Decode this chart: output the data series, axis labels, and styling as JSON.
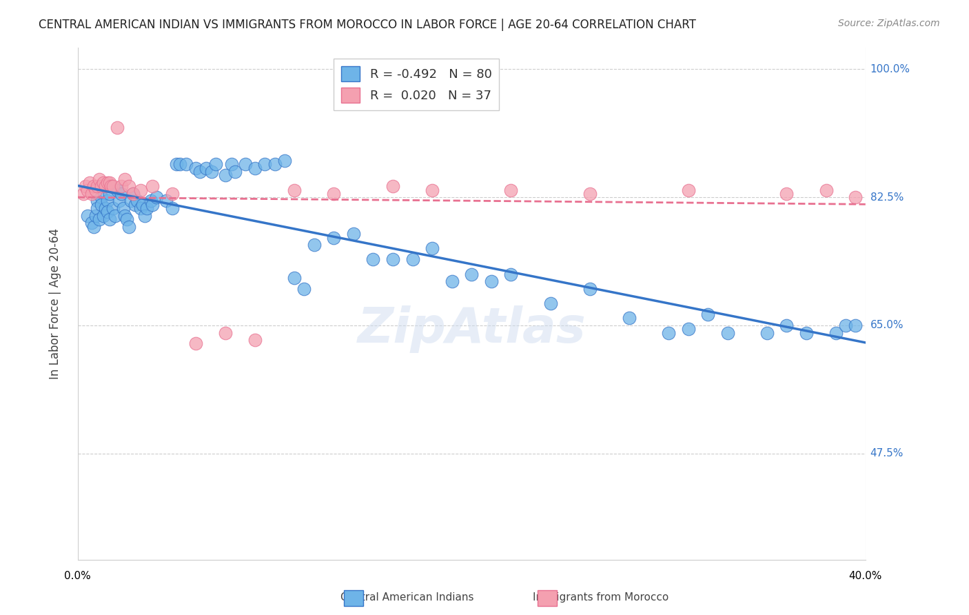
{
  "title": "CENTRAL AMERICAN INDIAN VS IMMIGRANTS FROM MOROCCO IN LABOR FORCE | AGE 20-64 CORRELATION CHART",
  "source": "Source: ZipAtlas.com",
  "ylabel": "In Labor Force | Age 20-64",
  "yticks": [
    0.475,
    0.65,
    0.825,
    1.0
  ],
  "ytick_labels": [
    "47.5%",
    "65.0%",
    "82.5%",
    "100.0%"
  ],
  "xmin": 0.0,
  "xmax": 0.4,
  "ymin": 0.33,
  "ymax": 1.03,
  "legend_r1": "R = -0.492",
  "legend_n1": "N = 80",
  "legend_r2": "R =  0.020",
  "legend_n2": "N = 37",
  "color_blue": "#6EB4E8",
  "color_pink": "#F4A0B0",
  "color_blue_line": "#3575C8",
  "color_pink_line": "#E87090",
  "color_axis_label_right": "#3575C8",
  "watermark": "ZipAtlas",
  "blue_x": [
    0.005,
    0.007,
    0.008,
    0.009,
    0.01,
    0.01,
    0.011,
    0.012,
    0.012,
    0.013,
    0.014,
    0.015,
    0.015,
    0.016,
    0.016,
    0.017,
    0.018,
    0.019,
    0.02,
    0.021,
    0.022,
    0.023,
    0.024,
    0.025,
    0.026,
    0.027,
    0.028,
    0.029,
    0.03,
    0.032,
    0.033,
    0.034,
    0.035,
    0.037,
    0.038,
    0.04,
    0.045,
    0.048,
    0.05,
    0.052,
    0.055,
    0.06,
    0.062,
    0.065,
    0.068,
    0.07,
    0.075,
    0.078,
    0.08,
    0.085,
    0.09,
    0.095,
    0.1,
    0.105,
    0.11,
    0.115,
    0.12,
    0.13,
    0.14,
    0.15,
    0.16,
    0.17,
    0.18,
    0.19,
    0.2,
    0.21,
    0.22,
    0.24,
    0.26,
    0.28,
    0.3,
    0.31,
    0.32,
    0.33,
    0.35,
    0.36,
    0.37,
    0.385,
    0.39,
    0.395
  ],
  "blue_y": [
    0.8,
    0.79,
    0.785,
    0.8,
    0.82,
    0.81,
    0.795,
    0.825,
    0.815,
    0.8,
    0.81,
    0.82,
    0.805,
    0.795,
    0.83,
    0.84,
    0.81,
    0.8,
    0.835,
    0.82,
    0.83,
    0.81,
    0.8,
    0.795,
    0.785,
    0.82,
    0.83,
    0.815,
    0.82,
    0.81,
    0.815,
    0.8,
    0.81,
    0.82,
    0.815,
    0.825,
    0.82,
    0.81,
    0.87,
    0.87,
    0.87,
    0.865,
    0.86,
    0.865,
    0.86,
    0.87,
    0.855,
    0.87,
    0.86,
    0.87,
    0.865,
    0.87,
    0.87,
    0.875,
    0.715,
    0.7,
    0.76,
    0.77,
    0.775,
    0.74,
    0.74,
    0.74,
    0.755,
    0.71,
    0.72,
    0.71,
    0.72,
    0.68,
    0.7,
    0.66,
    0.64,
    0.645,
    0.665,
    0.64,
    0.64,
    0.65,
    0.64,
    0.64,
    0.65,
    0.65
  ],
  "pink_x": [
    0.003,
    0.004,
    0.005,
    0.006,
    0.007,
    0.008,
    0.009,
    0.01,
    0.011,
    0.012,
    0.013,
    0.014,
    0.015,
    0.016,
    0.017,
    0.018,
    0.02,
    0.022,
    0.024,
    0.026,
    0.028,
    0.032,
    0.038,
    0.048,
    0.06,
    0.075,
    0.09,
    0.11,
    0.13,
    0.16,
    0.18,
    0.22,
    0.26,
    0.31,
    0.36,
    0.38,
    0.395
  ],
  "pink_y": [
    0.83,
    0.84,
    0.835,
    0.845,
    0.83,
    0.84,
    0.835,
    0.84,
    0.85,
    0.84,
    0.845,
    0.84,
    0.845,
    0.845,
    0.84,
    0.84,
    0.92,
    0.84,
    0.85,
    0.84,
    0.83,
    0.835,
    0.84,
    0.83,
    0.625,
    0.64,
    0.63,
    0.835,
    0.83,
    0.84,
    0.835,
    0.835,
    0.83,
    0.835,
    0.83,
    0.835,
    0.825
  ]
}
